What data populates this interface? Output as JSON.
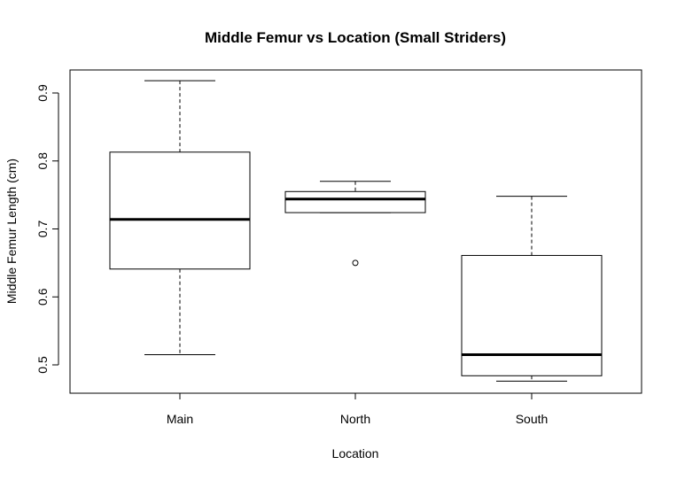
{
  "chart_data": {
    "type": "boxplot",
    "title": "Middle Femur vs Location (Small Striders)",
    "xlabel": "Location",
    "ylabel": "Middle Femur Length (cm)",
    "ylim": [
      0.46,
      0.93
    ],
    "yticks": [
      0.5,
      0.6,
      0.7,
      0.8,
      0.9
    ],
    "ytick_labels": [
      "0.5",
      "0.6",
      "0.7",
      "0.8",
      "0.9"
    ],
    "categories": [
      "Main",
      "North",
      "South"
    ],
    "boxes": [
      {
        "category": "Main",
        "whisker_low": 0.515,
        "q1": 0.641,
        "median": 0.714,
        "q3": 0.813,
        "whisker_high": 0.918,
        "outliers": []
      },
      {
        "category": "North",
        "whisker_low": 0.724,
        "q1": 0.724,
        "median": 0.744,
        "q3": 0.755,
        "whisker_high": 0.77,
        "outliers": [
          0.65
        ]
      },
      {
        "category": "South",
        "whisker_low": 0.476,
        "q1": 0.484,
        "median": 0.515,
        "q3": 0.661,
        "whisker_high": 0.748,
        "outliers": []
      }
    ],
    "grid": false,
    "legend": "none"
  }
}
